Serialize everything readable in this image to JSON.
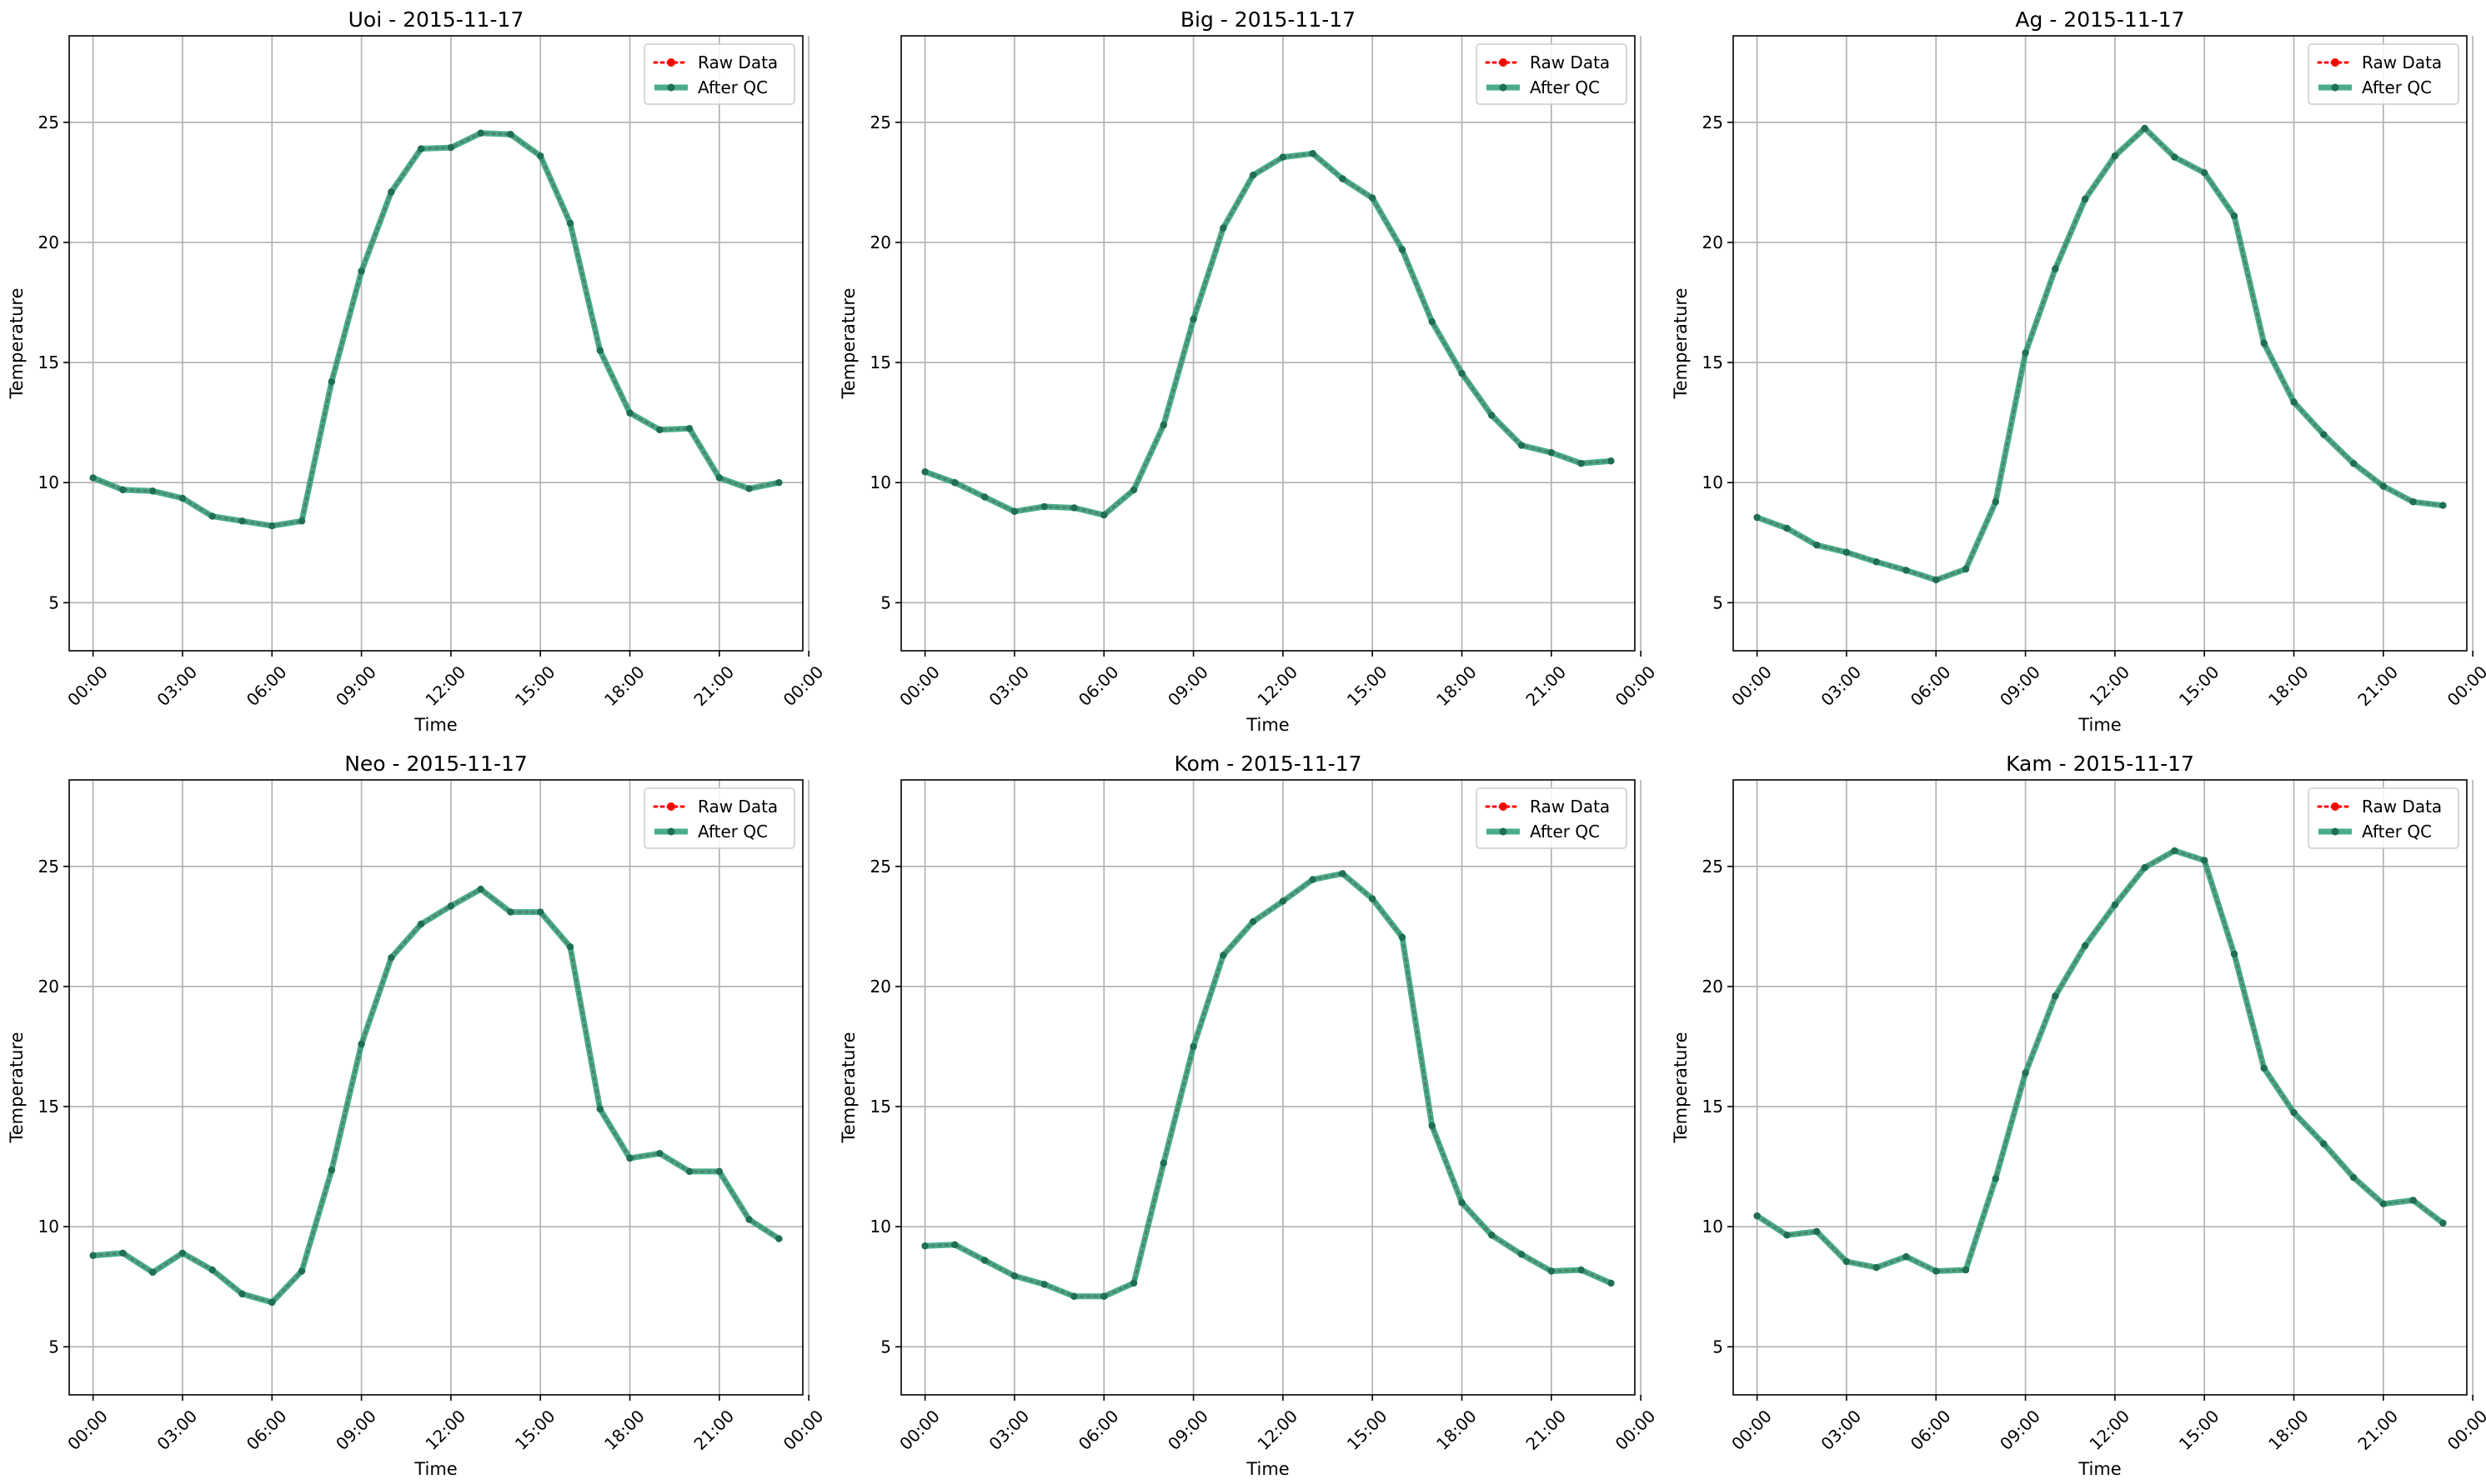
{
  "figure": {
    "raw_color": "#ff0000",
    "qc_color": "#2a9d78",
    "marker_color": "#1f6f52"
  },
  "chart_data": [
    {
      "type": "line",
      "title": "Uoi - 2015-11-17",
      "xlabel": "Time",
      "ylabel": "Temperature",
      "ylim": [
        3,
        28.6
      ],
      "yticks": [
        5,
        10,
        15,
        20,
        25
      ],
      "xlim": [
        -0.8,
        23.8
      ],
      "xticks": [
        0,
        3,
        6,
        9,
        12,
        15,
        18,
        21,
        24
      ],
      "xtick_labels": [
        "00:00",
        "03:00",
        "06:00",
        "09:00",
        "12:00",
        "15:00",
        "18:00",
        "21:00",
        "00:00"
      ],
      "grid": true,
      "legend": "top-right",
      "x": [
        0,
        1,
        2,
        3,
        4,
        5,
        6,
        7,
        8,
        9,
        10,
        11,
        12,
        13,
        14,
        15,
        16,
        17,
        18,
        19,
        20,
        21,
        22,
        23
      ],
      "series": [
        {
          "name": "Raw Data",
          "style": "dotted",
          "values": [
            10.2,
            9.7,
            9.65,
            9.35,
            8.6,
            8.4,
            8.2,
            8.4,
            14.2,
            18.8,
            22.1,
            23.9,
            23.95,
            24.55,
            24.5,
            23.6,
            20.8,
            15.5,
            12.9,
            12.2,
            12.25,
            10.2,
            9.75,
            10.0
          ]
        },
        {
          "name": "After QC",
          "style": "solid",
          "values": [
            10.2,
            9.7,
            9.65,
            9.35,
            8.6,
            8.4,
            8.2,
            8.4,
            14.2,
            18.8,
            22.1,
            23.9,
            23.95,
            24.55,
            24.5,
            23.6,
            20.8,
            15.5,
            12.9,
            12.2,
            12.25,
            10.2,
            9.75,
            10.0
          ]
        }
      ]
    },
    {
      "type": "line",
      "title": "Big - 2015-11-17",
      "xlabel": "Time",
      "ylabel": "Temperature",
      "ylim": [
        3,
        28.6
      ],
      "yticks": [
        5,
        10,
        15,
        20,
        25
      ],
      "xlim": [
        -0.8,
        23.8
      ],
      "xticks": [
        0,
        3,
        6,
        9,
        12,
        15,
        18,
        21,
        24
      ],
      "xtick_labels": [
        "00:00",
        "03:00",
        "06:00",
        "09:00",
        "12:00",
        "15:00",
        "18:00",
        "21:00",
        "00:00"
      ],
      "grid": true,
      "legend": "top-right",
      "x": [
        0,
        1,
        2,
        3,
        4,
        5,
        6,
        7,
        8,
        9,
        10,
        11,
        12,
        13,
        14,
        15,
        16,
        17,
        18,
        19,
        20,
        21,
        22,
        23
      ],
      "series": [
        {
          "name": "Raw Data",
          "style": "dotted",
          "values": [
            10.45,
            10.0,
            9.4,
            8.8,
            9.0,
            8.95,
            8.65,
            9.7,
            12.4,
            16.8,
            20.6,
            22.8,
            23.55,
            23.7,
            22.65,
            21.85,
            19.7,
            16.7,
            14.55,
            12.8,
            11.55,
            11.25,
            10.8,
            10.9
          ]
        },
        {
          "name": "After QC",
          "style": "solid",
          "values": [
            10.45,
            10.0,
            9.4,
            8.8,
            9.0,
            8.95,
            8.65,
            9.7,
            12.4,
            16.8,
            20.6,
            22.8,
            23.55,
            23.7,
            22.65,
            21.85,
            19.7,
            16.7,
            14.55,
            12.8,
            11.55,
            11.25,
            10.8,
            10.9
          ]
        }
      ]
    },
    {
      "type": "line",
      "title": "Ag - 2015-11-17",
      "xlabel": "Time",
      "ylabel": "Temperature",
      "ylim": [
        3,
        28.6
      ],
      "yticks": [
        5,
        10,
        15,
        20,
        25
      ],
      "xlim": [
        -0.8,
        23.8
      ],
      "xticks": [
        0,
        3,
        6,
        9,
        12,
        15,
        18,
        21,
        24
      ],
      "xtick_labels": [
        "00:00",
        "03:00",
        "06:00",
        "09:00",
        "12:00",
        "15:00",
        "18:00",
        "21:00",
        "00:00"
      ],
      "grid": true,
      "legend": "top-right",
      "x": [
        0,
        1,
        2,
        3,
        4,
        5,
        6,
        7,
        8,
        9,
        10,
        11,
        12,
        13,
        14,
        15,
        16,
        17,
        18,
        19,
        20,
        21,
        22,
        23
      ],
      "series": [
        {
          "name": "Raw Data",
          "style": "dotted",
          "values": [
            8.55,
            8.1,
            7.4,
            7.1,
            6.7,
            6.35,
            5.95,
            6.4,
            9.2,
            15.4,
            18.9,
            21.8,
            23.6,
            24.75,
            23.55,
            22.9,
            21.1,
            15.8,
            13.35,
            12.0,
            10.8,
            9.85,
            9.2,
            9.05
          ]
        },
        {
          "name": "After QC",
          "style": "solid",
          "values": [
            8.55,
            8.1,
            7.4,
            7.1,
            6.7,
            6.35,
            5.95,
            6.4,
            9.2,
            15.4,
            18.9,
            21.8,
            23.6,
            24.75,
            23.55,
            22.9,
            21.1,
            15.8,
            13.35,
            12.0,
            10.8,
            9.85,
            9.2,
            9.05
          ]
        }
      ]
    },
    {
      "type": "line",
      "title": "Neo - 2015-11-17",
      "xlabel": "Time",
      "ylabel": "Temperature",
      "ylim": [
        3,
        28.6
      ],
      "yticks": [
        5,
        10,
        15,
        20,
        25
      ],
      "xlim": [
        -0.8,
        23.8
      ],
      "xticks": [
        0,
        3,
        6,
        9,
        12,
        15,
        18,
        21,
        24
      ],
      "xtick_labels": [
        "00:00",
        "03:00",
        "06:00",
        "09:00",
        "12:00",
        "15:00",
        "18:00",
        "21:00",
        "00:00"
      ],
      "grid": true,
      "legend": "top-right",
      "x": [
        0,
        1,
        2,
        3,
        4,
        5,
        6,
        7,
        8,
        9,
        10,
        11,
        12,
        13,
        14,
        15,
        16,
        17,
        18,
        19,
        20,
        21,
        22,
        23
      ],
      "series": [
        {
          "name": "Raw Data",
          "style": "dotted",
          "values": [
            8.8,
            8.9,
            8.1,
            8.9,
            8.2,
            7.2,
            6.85,
            8.15,
            12.35,
            17.6,
            21.2,
            22.6,
            23.35,
            24.05,
            23.1,
            23.1,
            21.65,
            14.9,
            12.85,
            13.05,
            12.3,
            12.3,
            10.3,
            9.5
          ]
        },
        {
          "name": "After QC",
          "style": "solid",
          "values": [
            8.8,
            8.9,
            8.1,
            8.9,
            8.2,
            7.2,
            6.85,
            8.15,
            12.35,
            17.6,
            21.2,
            22.6,
            23.35,
            24.05,
            23.1,
            23.1,
            21.65,
            14.9,
            12.85,
            13.05,
            12.3,
            12.3,
            10.3,
            9.5
          ]
        }
      ]
    },
    {
      "type": "line",
      "title": "Kom - 2015-11-17",
      "xlabel": "Time",
      "ylabel": "Temperature",
      "ylim": [
        3,
        28.6
      ],
      "yticks": [
        5,
        10,
        15,
        20,
        25
      ],
      "xlim": [
        -0.8,
        23.8
      ],
      "xticks": [
        0,
        3,
        6,
        9,
        12,
        15,
        18,
        21,
        24
      ],
      "xtick_labels": [
        "00:00",
        "03:00",
        "06:00",
        "09:00",
        "12:00",
        "15:00",
        "18:00",
        "21:00",
        "00:00"
      ],
      "grid": true,
      "legend": "top-right",
      "x": [
        0,
        1,
        2,
        3,
        4,
        5,
        6,
        7,
        8,
        9,
        10,
        11,
        12,
        13,
        14,
        15,
        16,
        17,
        18,
        19,
        20,
        21,
        22,
        23
      ],
      "series": [
        {
          "name": "Raw Data",
          "style": "dotted",
          "values": [
            9.2,
            9.25,
            8.6,
            7.95,
            7.6,
            7.1,
            7.1,
            7.65,
            12.65,
            17.5,
            21.3,
            22.7,
            23.55,
            24.45,
            24.7,
            23.65,
            22.05,
            14.2,
            11.0,
            9.65,
            8.85,
            8.15,
            8.2,
            7.65
          ]
        },
        {
          "name": "After QC",
          "style": "solid",
          "values": [
            9.2,
            9.25,
            8.6,
            7.95,
            7.6,
            7.1,
            7.1,
            7.65,
            12.65,
            17.5,
            21.3,
            22.7,
            23.55,
            24.45,
            24.7,
            23.65,
            22.05,
            14.2,
            11.0,
            9.65,
            8.85,
            8.15,
            8.2,
            7.65
          ]
        }
      ]
    },
    {
      "type": "line",
      "title": "Kam - 2015-11-17",
      "xlabel": "Time",
      "ylabel": "Temperature",
      "ylim": [
        3,
        28.6
      ],
      "yticks": [
        5,
        10,
        15,
        20,
        25
      ],
      "xlim": [
        -0.8,
        23.8
      ],
      "xticks": [
        0,
        3,
        6,
        9,
        12,
        15,
        18,
        21,
        24
      ],
      "xtick_labels": [
        "00:00",
        "03:00",
        "06:00",
        "09:00",
        "12:00",
        "15:00",
        "18:00",
        "21:00",
        "00:00"
      ],
      "grid": true,
      "legend": "top-right",
      "x": [
        0,
        1,
        2,
        3,
        4,
        5,
        6,
        7,
        8,
        9,
        10,
        11,
        12,
        13,
        14,
        15,
        16,
        17,
        18,
        19,
        20,
        21,
        22,
        23
      ],
      "series": [
        {
          "name": "Raw Data",
          "style": "dotted",
          "values": [
            10.45,
            9.65,
            9.8,
            8.55,
            8.3,
            8.75,
            8.15,
            8.2,
            12.0,
            16.4,
            19.6,
            21.7,
            23.4,
            24.95,
            25.65,
            25.25,
            21.35,
            16.6,
            14.75,
            13.45,
            12.05,
            10.95,
            11.1,
            10.15
          ]
        },
        {
          "name": "After QC",
          "style": "solid",
          "values": [
            10.45,
            9.65,
            9.8,
            8.55,
            8.3,
            8.75,
            8.15,
            8.2,
            12.0,
            16.4,
            19.6,
            21.7,
            23.4,
            24.95,
            25.65,
            25.25,
            21.35,
            16.6,
            14.75,
            13.45,
            12.05,
            10.95,
            11.1,
            10.15
          ]
        }
      ]
    }
  ]
}
